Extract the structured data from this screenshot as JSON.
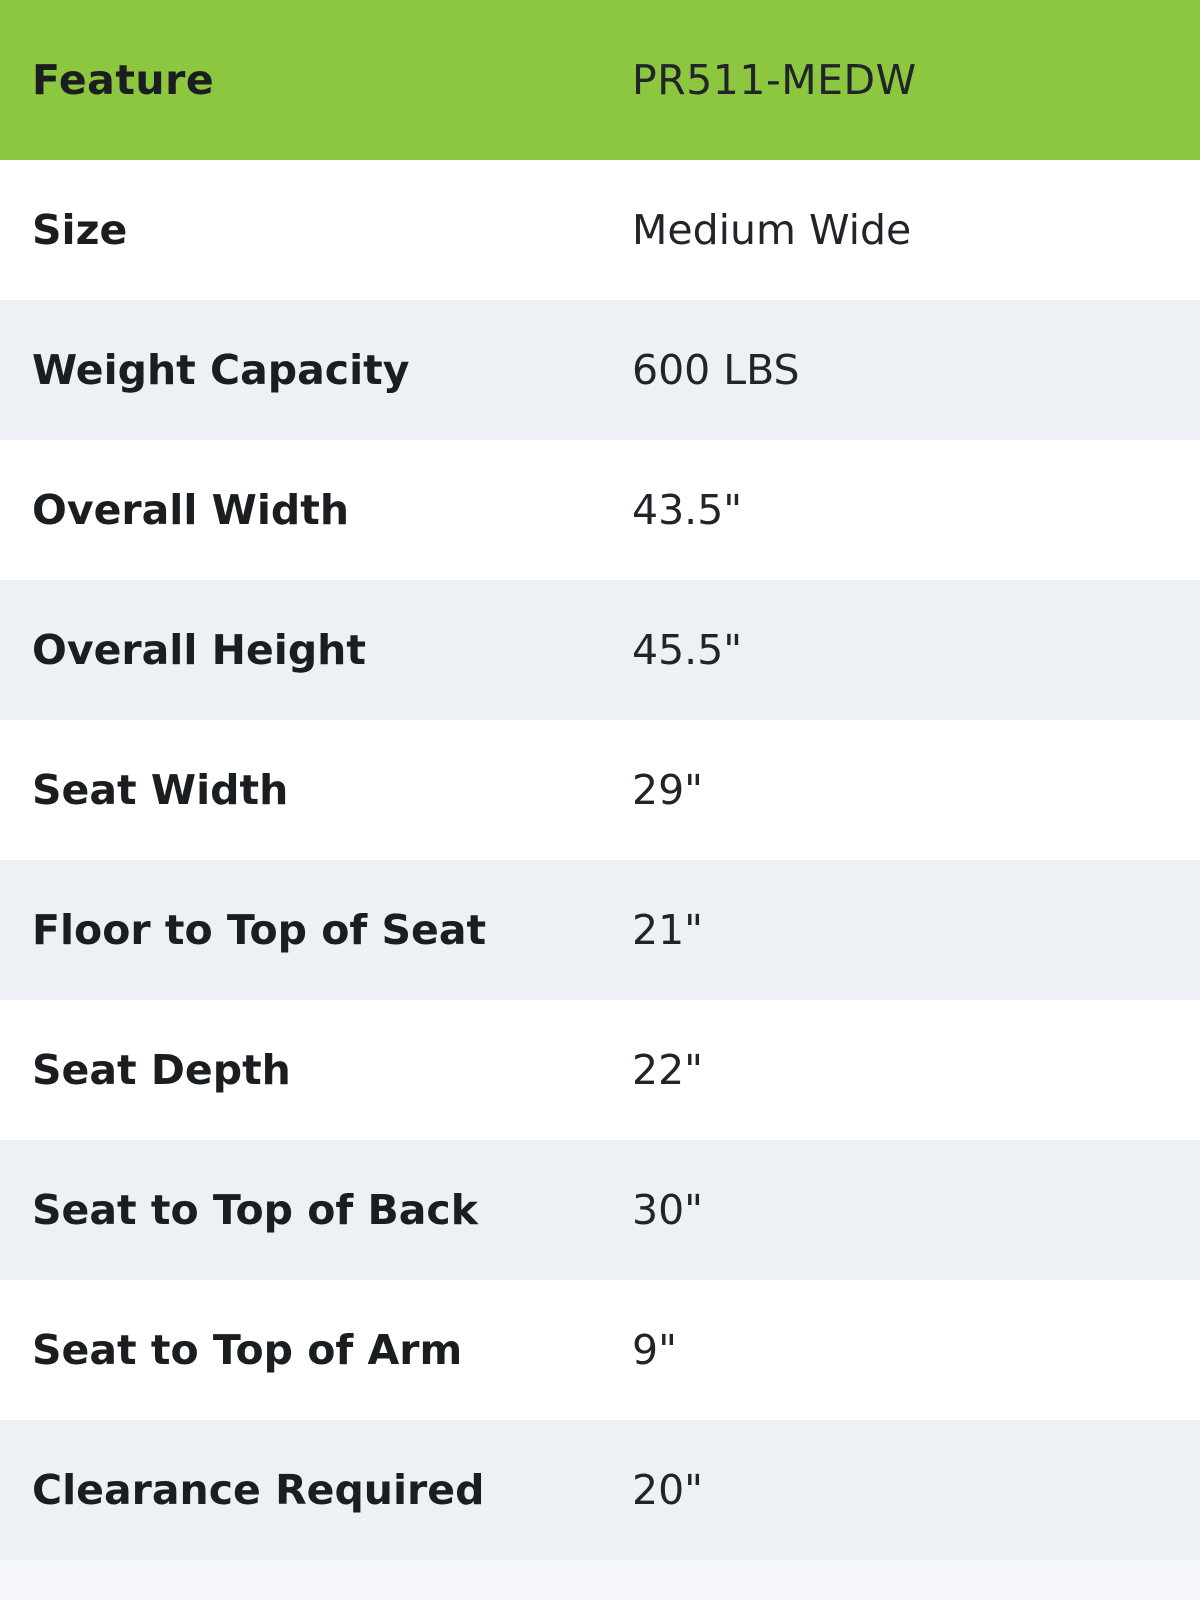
{
  "table": {
    "header": {
      "feature_col": "Feature",
      "model_col": "PR511-MEDW"
    },
    "rows": [
      {
        "label": "Size",
        "value": "Medium Wide"
      },
      {
        "label": "Weight Capacity",
        "value": "600 LBS"
      },
      {
        "label": "Overall Width",
        "value": "43.5\""
      },
      {
        "label": "Overall Height",
        "value": "45.5\""
      },
      {
        "label": "Seat Width",
        "value": "29\""
      },
      {
        "label": "Floor to Top of Seat",
        "value": "21\""
      },
      {
        "label": "Seat Depth",
        "value": "22\""
      },
      {
        "label": "Seat to Top of Back",
        "value": "30\""
      },
      {
        "label": "Seat to Top of Arm",
        "value": "9\""
      },
      {
        "label": "Clearance Required",
        "value": "20\""
      }
    ],
    "colors": {
      "header_bg": "#8dc63f",
      "row_alt_bg": "#edf0f4",
      "partial_row_bg": "#f4f6f9",
      "header_text": "#ffffff",
      "label_text": "#1b1e21",
      "value_text": "#212529"
    }
  }
}
